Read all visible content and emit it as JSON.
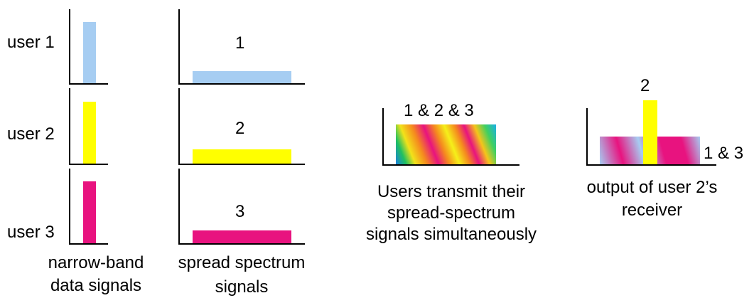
{
  "users": [
    {
      "label": "user 1",
      "number": "1",
      "color": "#a6cdf2"
    },
    {
      "label": "user 2",
      "number": "2",
      "color": "#ffff00"
    },
    {
      "label": "user 3",
      "number": "3",
      "color": "#e8137f"
    }
  ],
  "captions": {
    "narrowband_line1": "narrow-band",
    "narrowband_line2": "data signals",
    "spread_line1": "spread spectrum",
    "spread_line2": "signals",
    "transmit_line1": "Users transmit their",
    "transmit_line2": "spread-spectrum",
    "transmit_line3": "signals simultaneously",
    "receiver_line1": "output of user 2’s",
    "receiver_line2": "receiver"
  },
  "combined_label": "1 & 2 & 3",
  "receiver_peak_label": "2",
  "receiver_noise_label": "1 & 3"
}
